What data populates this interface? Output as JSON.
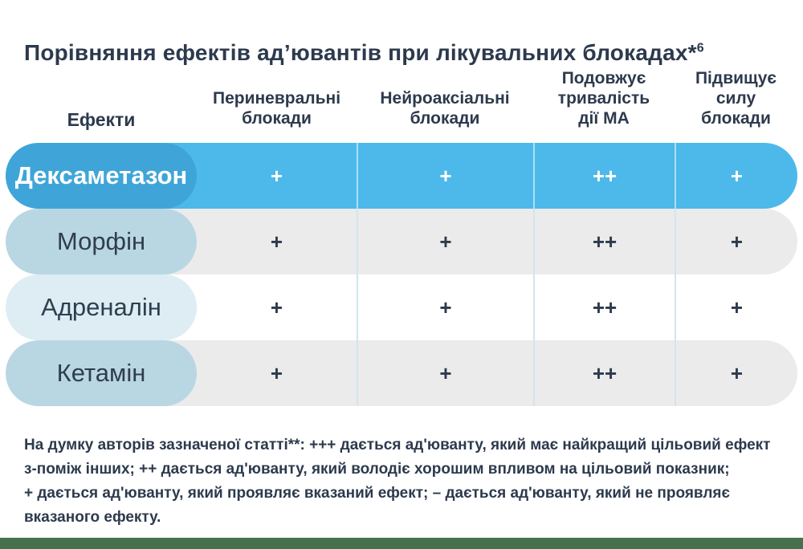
{
  "title": {
    "text": "Порівняння ефектів ад’ювантів при лікувальних блокадах*",
    "superscript": "6"
  },
  "table": {
    "header": {
      "effects_label": "Ефекти",
      "columns": [
        {
          "label": "Периневральні блокади",
          "lines": [
            "Периневральні",
            "блокади"
          ]
        },
        {
          "label": "Нейроаксіальні блокади",
          "lines": [
            "Нейроаксіальні",
            "блокади"
          ]
        },
        {
          "label": "Подовжує тривалість дії МА",
          "lines": [
            "Подовжує",
            "тривалість",
            "дії МА"
          ]
        },
        {
          "label": "Підвищує силу блокади",
          "lines": [
            "Підвищує",
            "силу",
            "блокади"
          ]
        }
      ]
    },
    "rows": [
      {
        "name": "Дексаметазон",
        "values": [
          "+",
          "+",
          "++",
          "+"
        ],
        "highlighted": true
      },
      {
        "name": "Морфін",
        "values": [
          "+",
          "+",
          "++",
          "+"
        ],
        "highlighted": false
      },
      {
        "name": "Адреналін",
        "values": [
          "+",
          "+",
          "++",
          "+"
        ],
        "highlighted": false
      },
      {
        "name": "Кетамін",
        "values": [
          "+",
          "+",
          "++",
          "+"
        ],
        "highlighted": false
      }
    ]
  },
  "footnote": {
    "lines": [
      "На думку авторів зазначеної статті**: +++ дається ад'юванту, який має найкращий цільовий ефект",
      "з-поміж інших; ++ дається ад'юванту, який володіє хорошим впливом на цільовий показник;",
      "+ дається ад'юванту, який проявляє вказаний ефект; – дається ад'юванту, який не проявляє",
      "вказаного ефекту."
    ]
  },
  "colors": {
    "text_navy": "#2D3A4D",
    "highlight_row_bg": "#4DB9EA",
    "highlight_pill_bg": "#3FA5D8",
    "pill_mid_blue": "#B9D7E2",
    "pill_light_blue": "#DDEDF3",
    "row_gray": "#EBEBEB",
    "separator": "#D2E5EC",
    "bottom_strip_green": "#47714E"
  },
  "chart_data": {
    "type": "table",
    "title": "Порівняння ефектів ад’ювантів при лікувальних блокадах*6",
    "columns": [
      "Ефекти",
      "Периневральні блокади",
      "Нейроаксіальні блокади",
      "Подовжує тривалість дії МА",
      "Підвищує силу блокади"
    ],
    "rows": [
      [
        "Дексаметазон",
        "+",
        "+",
        "++",
        "+"
      ],
      [
        "Морфін",
        "+",
        "+",
        "++",
        "+"
      ],
      [
        "Адреналін",
        "+",
        "+",
        "++",
        "+"
      ],
      [
        "Кетамін",
        "+",
        "+",
        "++",
        "+"
      ]
    ],
    "legend": "+++ найкращий цільовий ефект; ++ хороший вплив на цільовий показник; + проявляє вказаний ефект; – не проявляє вказаного ефекту"
  }
}
